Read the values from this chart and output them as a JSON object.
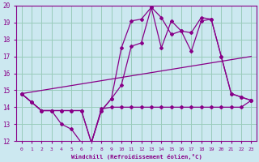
{
  "bg_color": "#cce8f0",
  "line_color": "#880088",
  "grid_color": "#99ccbb",
  "xlabel": "Windchill (Refroidissement éolien,°C)",
  "xlim": [
    -0.5,
    23.5
  ],
  "ylim": [
    12,
    20
  ],
  "yticks": [
    12,
    13,
    14,
    15,
    16,
    17,
    18,
    19,
    20
  ],
  "xticks": [
    0,
    1,
    2,
    3,
    4,
    5,
    6,
    7,
    8,
    9,
    10,
    11,
    12,
    13,
    14,
    15,
    16,
    17,
    18,
    19,
    20,
    21,
    22,
    23
  ],
  "series": [
    {
      "x": [
        0,
        1,
        2,
        3,
        4,
        5,
        6,
        7,
        8,
        9,
        10,
        11,
        12,
        13,
        14,
        15,
        16,
        17,
        18,
        19,
        20,
        21,
        22,
        23
      ],
      "y": [
        14.8,
        14.3,
        13.8,
        13.8,
        13.0,
        12.7,
        11.9,
        11.9,
        13.9,
        14.0,
        14.0,
        14.0,
        14.0,
        14.0,
        14.0,
        14.0,
        14.0,
        14.0,
        14.0,
        14.0,
        14.0,
        14.0,
        14.0,
        14.4
      ],
      "marker": true
    },
    {
      "x": [
        0,
        1,
        2,
        3,
        4,
        5,
        6,
        7,
        8,
        9,
        10,
        11,
        12,
        13,
        14,
        15,
        16,
        17,
        18,
        19,
        20,
        21,
        22,
        23
      ],
      "y": [
        14.8,
        14.3,
        13.8,
        13.8,
        13.8,
        13.8,
        13.8,
        11.9,
        13.8,
        14.5,
        17.5,
        19.1,
        19.2,
        19.9,
        17.5,
        19.1,
        18.5,
        17.3,
        19.1,
        19.2,
        17.0,
        14.8,
        14.6,
        14.4
      ],
      "marker": true
    },
    {
      "x": [
        0,
        1,
        2,
        3,
        4,
        5,
        6,
        7,
        8,
        9,
        10,
        11,
        12,
        13,
        14,
        15,
        16,
        17,
        18,
        19,
        20,
        21,
        22,
        23
      ],
      "y": [
        14.8,
        14.3,
        13.8,
        13.8,
        13.8,
        13.8,
        13.8,
        11.9,
        13.8,
        14.5,
        15.3,
        17.6,
        17.8,
        19.9,
        19.3,
        18.3,
        18.5,
        18.4,
        19.3,
        19.2,
        17.0,
        14.8,
        14.6,
        14.4
      ],
      "marker": true
    },
    {
      "x": [
        0,
        23
      ],
      "y": [
        14.8,
        17.0
      ],
      "marker": false
    }
  ]
}
